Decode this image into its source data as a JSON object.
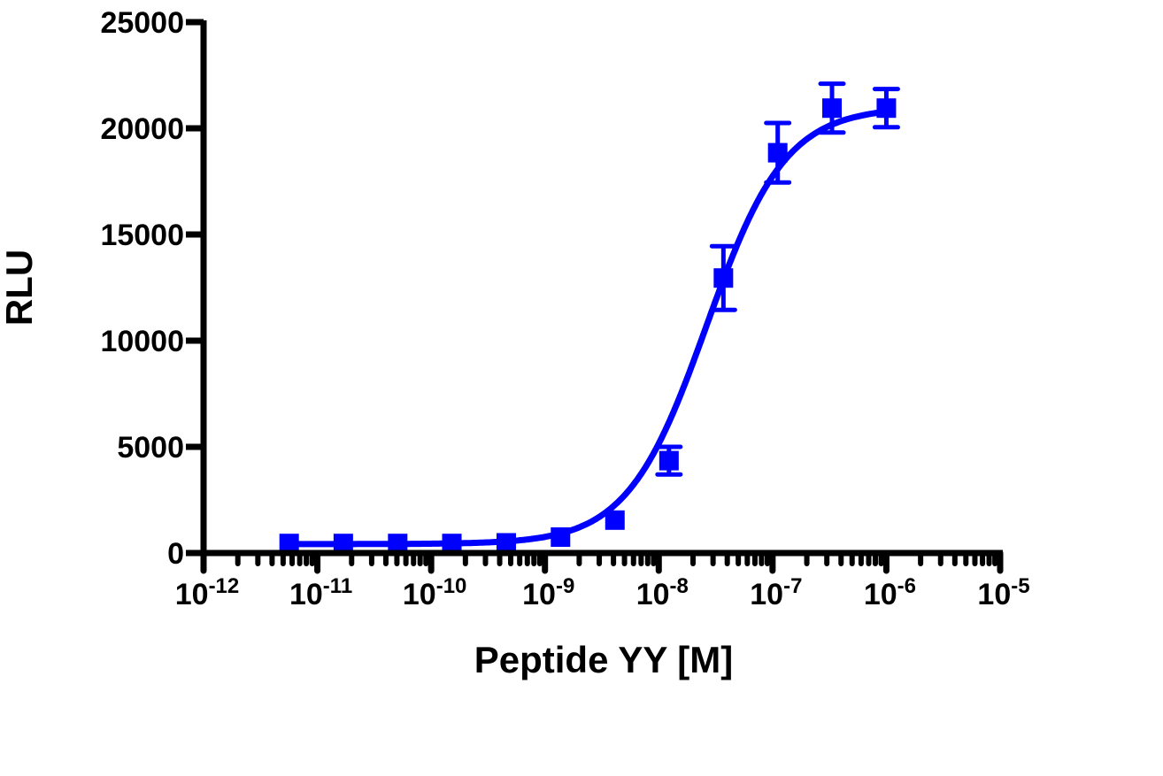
{
  "chart_data": {
    "type": "scatter",
    "title": "",
    "xlabel": "Peptide YY [M]",
    "ylabel": "RLU",
    "x_scale": "log",
    "xlim": [
      1e-12,
      1e-05
    ],
    "ylim": [
      0,
      25000
    ],
    "grid": false,
    "legend": "none",
    "color": "#0000ff",
    "x_tick_labels": [
      {
        "base": "10",
        "exp": "-12"
      },
      {
        "base": "10",
        "exp": "-11"
      },
      {
        "base": "10",
        "exp": "-10"
      },
      {
        "base": "10",
        "exp": "-9"
      },
      {
        "base": "10",
        "exp": "-8"
      },
      {
        "base": "10",
        "exp": "-7"
      },
      {
        "base": "10",
        "exp": "-6"
      },
      {
        "base": "10",
        "exp": "-5"
      }
    ],
    "y_tick_labels": [
      "0",
      "5000",
      "10000",
      "15000",
      "20000",
      "25000"
    ],
    "series": [
      {
        "marker": "square",
        "points": [
          {
            "x": 5.65e-12,
            "y": 450,
            "err": 0
          },
          {
            "x": 1.69e-11,
            "y": 450,
            "err": 0
          },
          {
            "x": 5.08e-11,
            "y": 450,
            "err": 0
          },
          {
            "x": 1.52e-10,
            "y": 450,
            "err": 0
          },
          {
            "x": 4.57e-10,
            "y": 480,
            "err": 0
          },
          {
            "x": 1.37e-09,
            "y": 750,
            "err": 0
          },
          {
            "x": 4.12e-09,
            "y": 1550,
            "err": 0
          },
          {
            "x": 1.23e-08,
            "y": 4350,
            "err": 650
          },
          {
            "x": 3.7e-08,
            "y": 12950,
            "err": 1500
          },
          {
            "x": 1.11e-07,
            "y": 18850,
            "err": 1400
          },
          {
            "x": 3.33e-07,
            "y": 20950,
            "err": 1150
          },
          {
            "x": 1e-06,
            "y": 20950,
            "err": 900
          }
        ],
        "fit": {
          "model": "four-parameter logistic",
          "bottom": 420,
          "top": 21000,
          "log_ec50": -7.58,
          "hill": 1.25
        }
      }
    ]
  }
}
